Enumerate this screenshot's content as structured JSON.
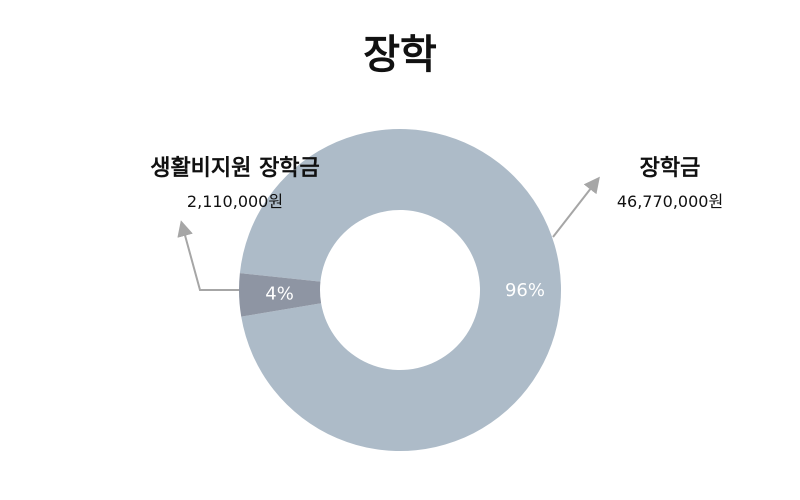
{
  "chart_data": {
    "type": "pie",
    "donut": true,
    "title": "장학",
    "slices": [
      {
        "name": "생활비지원 장학금",
        "value": 2110000,
        "value_label": "2,110,000원",
        "percent_label": "4%",
        "color": "#8e95a3"
      },
      {
        "name": "장학금",
        "value": 46770000,
        "value_label": "46,770,000원",
        "percent_label": "96%",
        "color": "#adbbc8"
      }
    ],
    "leader_line_color": "#a6a6a6",
    "legend": "none"
  }
}
